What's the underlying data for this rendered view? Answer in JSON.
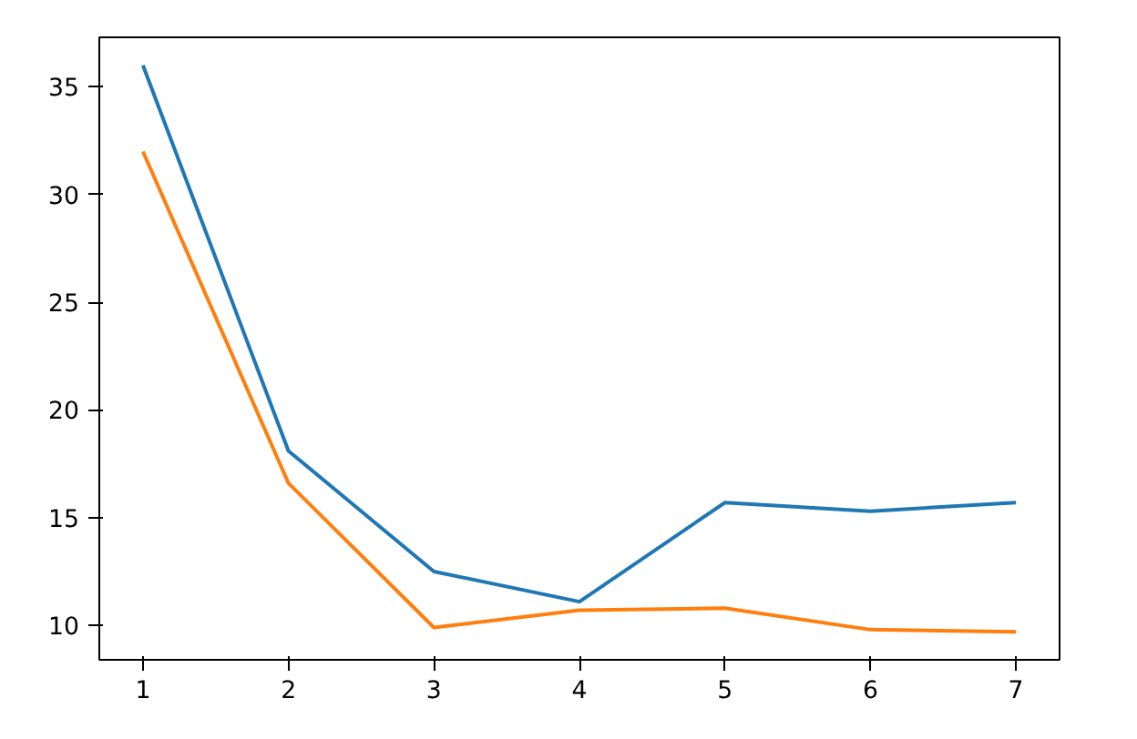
{
  "chart_data": {
    "type": "line",
    "x": [
      1,
      2,
      3,
      4,
      5,
      6,
      7
    ],
    "series": [
      {
        "color": "#1f77b4",
        "values": [
          36.0,
          18.1,
          12.5,
          11.1,
          15.7,
          15.3,
          15.7
        ]
      },
      {
        "color": "#ff7f0e",
        "values": [
          32.0,
          16.6,
          9.9,
          10.7,
          10.8,
          9.8,
          9.7
        ]
      }
    ],
    "xlim": [
      0.7,
      7.3
    ],
    "ylim": [
      8.4,
      37.3
    ],
    "xticks": [
      1,
      2,
      3,
      4,
      5,
      6,
      7
    ],
    "yticks": [
      10,
      15,
      20,
      25,
      30,
      35
    ],
    "grid": false
  }
}
